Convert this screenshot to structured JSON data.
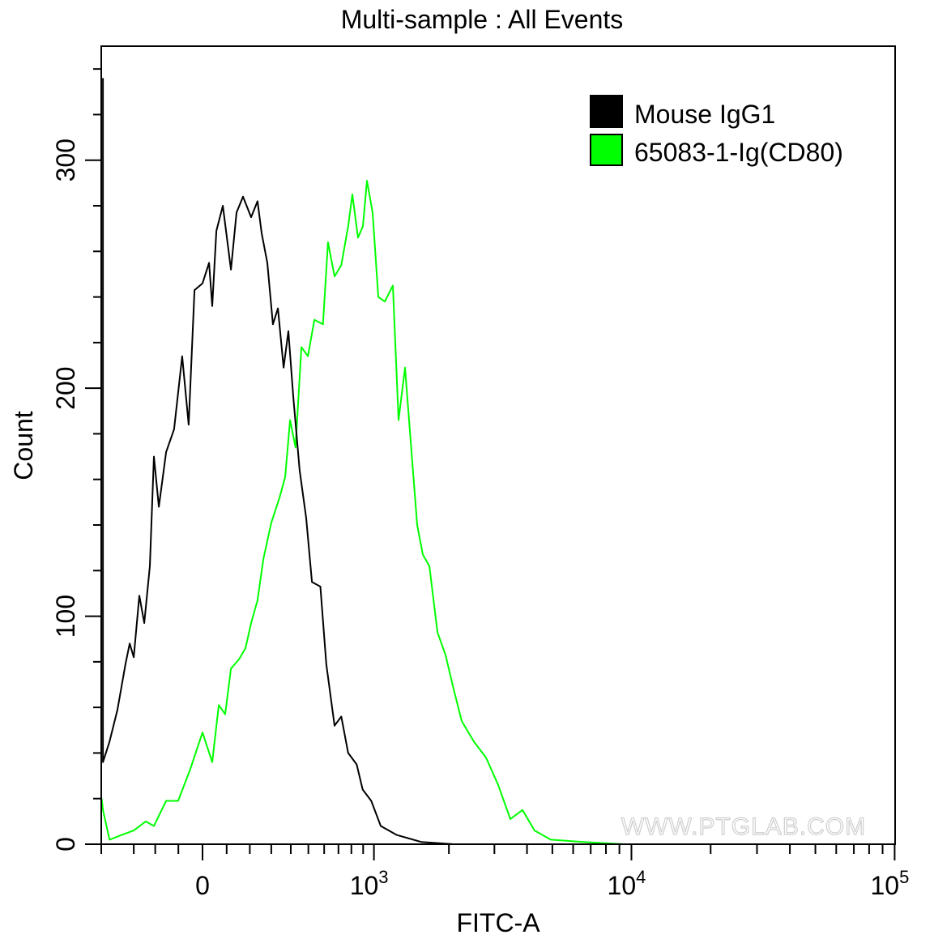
{
  "chart_data": {
    "type": "line",
    "title": "Multi-sample : All Events",
    "xlabel": "FITC-A",
    "ylabel": "Count",
    "x_scale": "biexponential",
    "xlim": [
      -470,
      100000
    ],
    "ylim": [
      0,
      350
    ],
    "grid": false,
    "legend_position": "top-right",
    "x_ticks": [
      {
        "value": 0,
        "base": "0",
        "exp": ""
      },
      {
        "value": 1000,
        "base": "10",
        "exp": "3"
      },
      {
        "value": 10000,
        "base": "10",
        "exp": "4"
      },
      {
        "value": 100000,
        "base": "10",
        "exp": "5"
      }
    ],
    "y_ticks": [
      {
        "value": 0,
        "label": "0"
      },
      {
        "value": 100,
        "label": "100"
      },
      {
        "value": 200,
        "label": "200"
      },
      {
        "value": 300,
        "label": "300"
      }
    ],
    "series": [
      {
        "name": "Mouse IgG1",
        "color": "#000000",
        "x": [
          -463,
          -463,
          -426,
          -383,
          -341,
          -320,
          -300,
          -273,
          -250,
          -224,
          -206,
          -184,
          -152,
          -118,
          -84,
          -57,
          -33,
          0,
          27,
          40,
          57,
          84,
          118,
          142,
          170,
          206,
          235,
          254,
          281,
          308,
          333,
          362,
          387,
          414,
          449,
          487,
          522,
          575,
          614,
          672,
          721,
          774,
          844,
          896,
          974,
          1067,
          1244,
          1557,
          2087
        ],
        "y": [
          336,
          36,
          45,
          59,
          79,
          88,
          82,
          109,
          97,
          122,
          170,
          148,
          172,
          182,
          214,
          184,
          243,
          246,
          255,
          236,
          269,
          280,
          252,
          277,
          284,
          275,
          282,
          268,
          255,
          228,
          235,
          209,
          225,
          196,
          164,
          143,
          115,
          113,
          79,
          52,
          56,
          40,
          35,
          24,
          19,
          8,
          4,
          1,
          0
        ]
      },
      {
        "name": "65083-1-Ig(CD80)",
        "color": "#00ff00",
        "x": [
          -470,
          -463,
          -426,
          -362,
          -300,
          -243,
          -206,
          -152,
          -101,
          -50,
          0,
          40,
          67,
          94,
          118,
          152,
          181,
          206,
          235,
          262,
          300,
          341,
          370,
          396,
          426,
          459,
          497,
          537,
          592,
          626,
          672,
          721,
          774,
          808,
          855,
          898,
          934,
          987,
          1043,
          1109,
          1198,
          1263,
          1341,
          1424,
          1500,
          1580,
          1677,
          1804,
          1941,
          2087,
          2244,
          2501,
          2786,
          3102,
          3455,
          3845,
          4277,
          4935,
          6557,
          9348
        ],
        "y": [
          20,
          15,
          2,
          4,
          6,
          10,
          8,
          19,
          19,
          33,
          49,
          36,
          61,
          57,
          77,
          81,
          86,
          97,
          107,
          125,
          141,
          152,
          161,
          186,
          174,
          218,
          214,
          230,
          228,
          264,
          249,
          254,
          271,
          285,
          266,
          271,
          291,
          277,
          240,
          238,
          245,
          186,
          209,
          172,
          140,
          127,
          122,
          93,
          83,
          68,
          54,
          45,
          38,
          26,
          11,
          15,
          6,
          2,
          1,
          0
        ]
      }
    ]
  },
  "watermark": "WWW.PTGLAB.COM"
}
